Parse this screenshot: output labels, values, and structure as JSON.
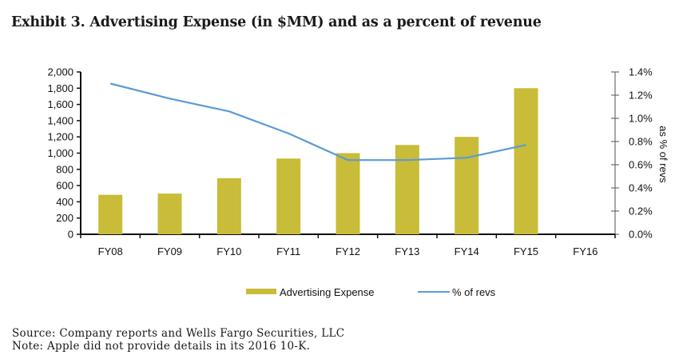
{
  "header": {
    "title": "Exhibit 3. Advertising Expense (in $MM) and as a percent of revenue"
  },
  "footer": {
    "source": "Source: Company reports and Wells Fargo Securities, LLC",
    "note": "Note: Apple did not provide details in its 2016 10-K."
  },
  "colors": {
    "bar": "#C8BC38",
    "line": "#5B9BD5",
    "axis": "#111111",
    "right_axis": "#555555"
  },
  "chart_data": {
    "type": "bar",
    "title": "Exhibit 3. Advertising Expense (in $MM) and as a percent of revenue",
    "categories": [
      "FY08",
      "FY09",
      "FY10",
      "FY11",
      "FY12",
      "FY13",
      "FY14",
      "FY15",
      "FY16"
    ],
    "series": [
      {
        "name": "Advertising Expense",
        "type": "bar",
        "axis": "left",
        "values": [
          486,
          501,
          691,
          933,
          1000,
          1100,
          1200,
          1800,
          null
        ]
      },
      {
        "name": "% of revs",
        "type": "line",
        "axis": "right",
        "values": [
          1.3,
          1.17,
          1.06,
          0.87,
          0.64,
          0.64,
          0.66,
          0.77,
          null
        ]
      }
    ],
    "left_axis": {
      "label": "",
      "range": [
        0,
        2000
      ],
      "ticks": [
        0,
        200,
        400,
        600,
        800,
        1000,
        1200,
        1400,
        1600,
        1800,
        2000
      ],
      "tick_labels": [
        "0",
        "200",
        "400",
        "600",
        "800",
        "1,000",
        "1,200",
        "1,400",
        "1,600",
        "1,800",
        "2,000"
      ]
    },
    "right_axis": {
      "label": "as % of revs",
      "range": [
        0,
        1.4
      ],
      "ticks": [
        0,
        0.2,
        0.4,
        0.6,
        0.8,
        1.0,
        1.2,
        1.4
      ],
      "tick_labels": [
        "0.0%",
        "0.2%",
        "0.4%",
        "0.6%",
        "0.8%",
        "1.0%",
        "1.2%",
        "1.4%"
      ]
    },
    "xlabel": "",
    "grid": false,
    "legend": {
      "position": "bottom",
      "entries": [
        "Advertising Expense",
        "% of revs"
      ]
    }
  }
}
